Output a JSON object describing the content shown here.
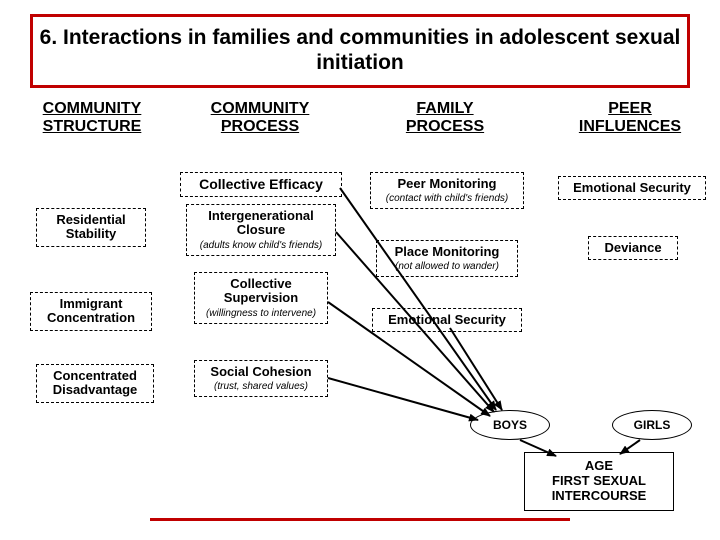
{
  "title": "6. Interactions in families and communities in adolescent sexual initiation",
  "columns": {
    "c1": "COMMUNITY\nSTRUCTURE",
    "c2": "COMMUNITY\nPROCESS",
    "c3": "FAMILY\nPROCESS",
    "c4": "PEER\nINFLUENCES"
  },
  "structure": {
    "res_stab": "Residential\nStability",
    "immigrant": "Immigrant\nConcentration",
    "concdis": "Concentrated\nDisadvantage"
  },
  "process": {
    "coll_eff": "Collective Efficacy",
    "intergen": "Intergenerational\nClosure",
    "intergen_note": "(adults know child's friends)",
    "coll_sup": "Collective\nSupervision",
    "coll_sup_note": "(willingness to intervene)",
    "soc_coh": "Social Cohesion",
    "soc_coh_note": "(trust, shared values)"
  },
  "family": {
    "peer_mon": "Peer Monitoring",
    "peer_mon_note": "(contact with child's friends)",
    "place_mon": "Place Monitoring",
    "place_mon_note": "(not allowed to wander)",
    "emo_sec": "Emotional Security"
  },
  "peer": {
    "emo_sec": "Emotional Security",
    "deviance": "Deviance"
  },
  "outcome": {
    "boys": "BOYS",
    "girls": "GIRLS",
    "age": "AGE\nFIRST SEXUAL\nINTERCOURSE"
  },
  "colors": {
    "accent": "#c00000",
    "text": "#000000",
    "bg": "#ffffff"
  }
}
